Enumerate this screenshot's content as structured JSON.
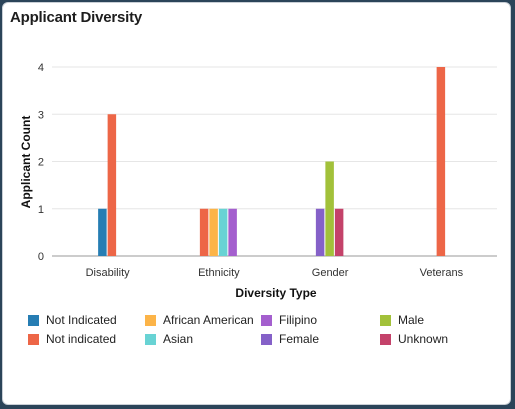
{
  "panel": {
    "title": "Applicant Diversity"
  },
  "chart_data": {
    "type": "bar",
    "title": "Applicant Diversity",
    "xlabel": "Diversity Type",
    "ylabel": "Applicant Count",
    "categories": [
      "Disability",
      "Ethnicity",
      "Gender",
      "Veterans"
    ],
    "ylim": [
      0,
      4
    ],
    "yticks": [
      0,
      1,
      2,
      3,
      4
    ],
    "grid": true,
    "legend_position": "bottom",
    "series": [
      {
        "name": "Not Indicated",
        "color": "#267db3",
        "values": [
          1,
          null,
          null,
          null
        ]
      },
      {
        "name": "Not indicated",
        "color": "#ed6647",
        "values": [
          3,
          1,
          null,
          4
        ]
      },
      {
        "name": "African American",
        "color": "#fcb448",
        "values": [
          null,
          1,
          null,
          null
        ]
      },
      {
        "name": "Asian",
        "color": "#68d3d4",
        "values": [
          null,
          1,
          null,
          null
        ]
      },
      {
        "name": "Filipino",
        "color": "#a45fce",
        "values": [
          null,
          1,
          null,
          null
        ]
      },
      {
        "name": "Female",
        "color": "#8561c8",
        "values": [
          null,
          null,
          1,
          null
        ]
      },
      {
        "name": "Male",
        "color": "#a2c13a",
        "values": [
          null,
          null,
          2,
          null
        ]
      },
      {
        "name": "Unknown",
        "color": "#c4426a",
        "values": [
          null,
          null,
          1,
          null
        ]
      }
    ]
  }
}
